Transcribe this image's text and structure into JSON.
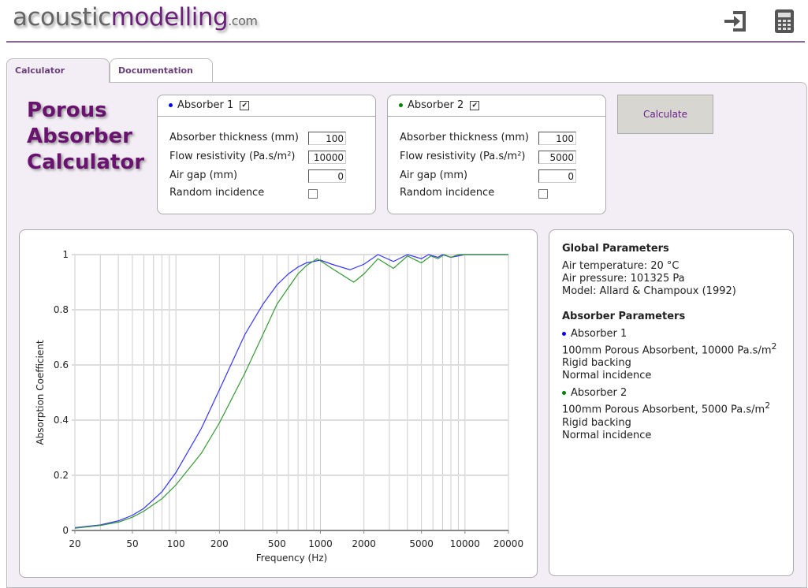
{
  "logo": {
    "part1": "acoustic",
    "part2": "modelling",
    "part3": ".com"
  },
  "tabs": [
    {
      "label": "Calculator"
    },
    {
      "label": "Documentation"
    }
  ],
  "title": [
    "Porous",
    "Absorber",
    "Calculator"
  ],
  "absorbers": [
    {
      "name": "Absorber 1",
      "color": "#0000ff",
      "enabled": true,
      "thickness_label": "Absorber thickness (mm)",
      "thickness": "100",
      "flow_label": "Flow resistivity (Pa.s/m²)",
      "flow": "10000",
      "gap_label": "Air gap (mm)",
      "gap": "0",
      "random_label": "Random incidence",
      "random": false
    },
    {
      "name": "Absorber 2",
      "color": "#008000",
      "enabled": true,
      "thickness_label": "Absorber thickness (mm)",
      "thickness": "100",
      "flow_label": "Flow resistivity (Pa.s/m²)",
      "flow": "5000",
      "gap_label": "Air gap (mm)",
      "gap": "0",
      "random_label": "Random incidence",
      "random": false
    }
  ],
  "calculate_label": "Calculate",
  "info": {
    "global_title": "Global Parameters",
    "global": [
      "Air temperature: 20 °C",
      "Air pressure: 101325 Pa",
      "Model: Allard & Champoux (1992)"
    ],
    "absorber_title": "Absorber Parameters",
    "a1": {
      "name": "Absorber 1",
      "desc": "100mm Porous Absorbent, 10000 Pa.s/m",
      "sup": "2",
      "backing": "Rigid backing",
      "incidence": "Normal incidence"
    },
    "a2": {
      "name": "Absorber 2",
      "desc": "100mm Porous Absorbent, 5000 Pa.s/m",
      "sup": "2",
      "backing": "Rigid backing",
      "incidence": "Normal incidence"
    }
  },
  "chart_data": {
    "type": "line",
    "xscale": "log",
    "xlabel": "Frequency (Hz)",
    "ylabel": "Absorption Coefficient",
    "xlim": [
      20,
      20000
    ],
    "ylim": [
      0,
      1
    ],
    "xticks": [
      20,
      50,
      100,
      200,
      500,
      1000,
      2000,
      5000,
      10000,
      20000
    ],
    "yticks": [
      0,
      0.2,
      0.4,
      0.6,
      0.8,
      1
    ],
    "series": [
      {
        "name": "Absorber 1",
        "color": "#3333ff",
        "x": [
          20,
          30,
          40,
          50,
          60,
          80,
          100,
          150,
          200,
          300,
          400,
          500,
          600,
          700,
          800,
          1000,
          1200,
          1600,
          2000,
          2500,
          3200,
          4000,
          5000,
          5600,
          6500,
          7000,
          8000,
          10000,
          20000
        ],
        "y": [
          0.01,
          0.02,
          0.035,
          0.055,
          0.08,
          0.14,
          0.21,
          0.37,
          0.51,
          0.71,
          0.82,
          0.89,
          0.93,
          0.955,
          0.97,
          0.98,
          0.965,
          0.945,
          0.965,
          1.0,
          0.975,
          1.0,
          0.985,
          1.0,
          0.99,
          1.0,
          0.99,
          1.0,
          1.0
        ]
      },
      {
        "name": "Absorber 2",
        "color": "#339933",
        "x": [
          20,
          30,
          40,
          50,
          60,
          80,
          100,
          150,
          200,
          300,
          400,
          500,
          600,
          700,
          800,
          950,
          1200,
          1700,
          2000,
          2500,
          3200,
          4000,
          5000,
          5800,
          6500,
          7200,
          8000,
          9000,
          20000
        ],
        "y": [
          0.008,
          0.018,
          0.03,
          0.048,
          0.07,
          0.115,
          0.165,
          0.28,
          0.39,
          0.57,
          0.71,
          0.82,
          0.88,
          0.93,
          0.96,
          0.985,
          0.95,
          0.9,
          0.93,
          0.985,
          0.95,
          0.995,
          0.97,
          0.995,
          0.985,
          1.0,
          0.99,
          1.0,
          1.0
        ]
      }
    ]
  }
}
